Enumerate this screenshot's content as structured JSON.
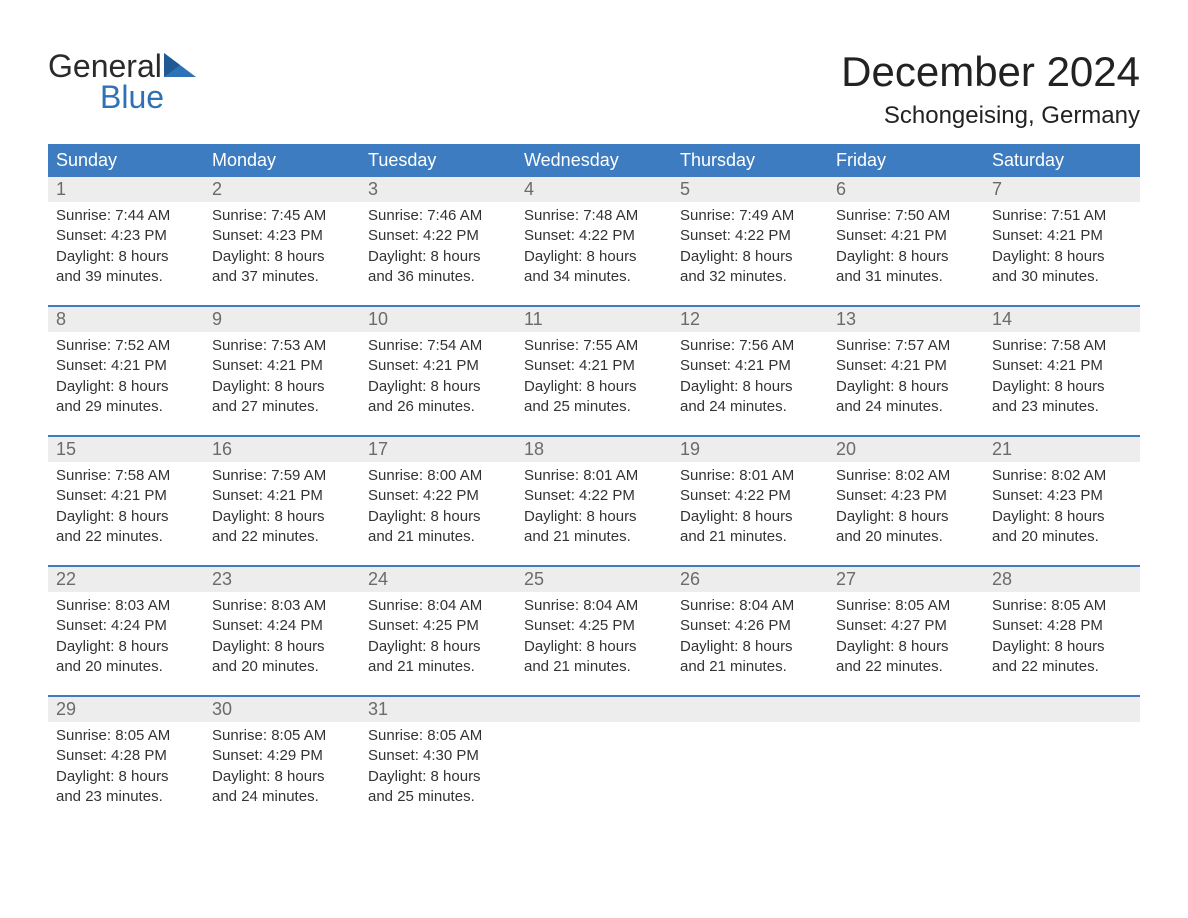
{
  "brand": {
    "general": "General",
    "blue": "Blue"
  },
  "colors": {
    "header_bg": "#3d7cc0",
    "header_text": "#ffffff",
    "daynum_bg": "#ededed",
    "daynum_text": "#6b6b6b",
    "info_text": "#333333",
    "accent": "#2f71b6",
    "page_bg": "#ffffff"
  },
  "title": "December 2024",
  "location": "Schongeising, Germany",
  "day_headers": [
    "Sunday",
    "Monday",
    "Tuesday",
    "Wednesday",
    "Thursday",
    "Friday",
    "Saturday"
  ],
  "weeks": [
    [
      {
        "n": "1",
        "sr": "Sunrise: 7:44 AM",
        "ss": "Sunset: 4:23 PM",
        "d1": "Daylight: 8 hours",
        "d2": "and 39 minutes."
      },
      {
        "n": "2",
        "sr": "Sunrise: 7:45 AM",
        "ss": "Sunset: 4:23 PM",
        "d1": "Daylight: 8 hours",
        "d2": "and 37 minutes."
      },
      {
        "n": "3",
        "sr": "Sunrise: 7:46 AM",
        "ss": "Sunset: 4:22 PM",
        "d1": "Daylight: 8 hours",
        "d2": "and 36 minutes."
      },
      {
        "n": "4",
        "sr": "Sunrise: 7:48 AM",
        "ss": "Sunset: 4:22 PM",
        "d1": "Daylight: 8 hours",
        "d2": "and 34 minutes."
      },
      {
        "n": "5",
        "sr": "Sunrise: 7:49 AM",
        "ss": "Sunset: 4:22 PM",
        "d1": "Daylight: 8 hours",
        "d2": "and 32 minutes."
      },
      {
        "n": "6",
        "sr": "Sunrise: 7:50 AM",
        "ss": "Sunset: 4:21 PM",
        "d1": "Daylight: 8 hours",
        "d2": "and 31 minutes."
      },
      {
        "n": "7",
        "sr": "Sunrise: 7:51 AM",
        "ss": "Sunset: 4:21 PM",
        "d1": "Daylight: 8 hours",
        "d2": "and 30 minutes."
      }
    ],
    [
      {
        "n": "8",
        "sr": "Sunrise: 7:52 AM",
        "ss": "Sunset: 4:21 PM",
        "d1": "Daylight: 8 hours",
        "d2": "and 29 minutes."
      },
      {
        "n": "9",
        "sr": "Sunrise: 7:53 AM",
        "ss": "Sunset: 4:21 PM",
        "d1": "Daylight: 8 hours",
        "d2": "and 27 minutes."
      },
      {
        "n": "10",
        "sr": "Sunrise: 7:54 AM",
        "ss": "Sunset: 4:21 PM",
        "d1": "Daylight: 8 hours",
        "d2": "and 26 minutes."
      },
      {
        "n": "11",
        "sr": "Sunrise: 7:55 AM",
        "ss": "Sunset: 4:21 PM",
        "d1": "Daylight: 8 hours",
        "d2": "and 25 minutes."
      },
      {
        "n": "12",
        "sr": "Sunrise: 7:56 AM",
        "ss": "Sunset: 4:21 PM",
        "d1": "Daylight: 8 hours",
        "d2": "and 24 minutes."
      },
      {
        "n": "13",
        "sr": "Sunrise: 7:57 AM",
        "ss": "Sunset: 4:21 PM",
        "d1": "Daylight: 8 hours",
        "d2": "and 24 minutes."
      },
      {
        "n": "14",
        "sr": "Sunrise: 7:58 AM",
        "ss": "Sunset: 4:21 PM",
        "d1": "Daylight: 8 hours",
        "d2": "and 23 minutes."
      }
    ],
    [
      {
        "n": "15",
        "sr": "Sunrise: 7:58 AM",
        "ss": "Sunset: 4:21 PM",
        "d1": "Daylight: 8 hours",
        "d2": "and 22 minutes."
      },
      {
        "n": "16",
        "sr": "Sunrise: 7:59 AM",
        "ss": "Sunset: 4:21 PM",
        "d1": "Daylight: 8 hours",
        "d2": "and 22 minutes."
      },
      {
        "n": "17",
        "sr": "Sunrise: 8:00 AM",
        "ss": "Sunset: 4:22 PM",
        "d1": "Daylight: 8 hours",
        "d2": "and 21 minutes."
      },
      {
        "n": "18",
        "sr": "Sunrise: 8:01 AM",
        "ss": "Sunset: 4:22 PM",
        "d1": "Daylight: 8 hours",
        "d2": "and 21 minutes."
      },
      {
        "n": "19",
        "sr": "Sunrise: 8:01 AM",
        "ss": "Sunset: 4:22 PM",
        "d1": "Daylight: 8 hours",
        "d2": "and 21 minutes."
      },
      {
        "n": "20",
        "sr": "Sunrise: 8:02 AM",
        "ss": "Sunset: 4:23 PM",
        "d1": "Daylight: 8 hours",
        "d2": "and 20 minutes."
      },
      {
        "n": "21",
        "sr": "Sunrise: 8:02 AM",
        "ss": "Sunset: 4:23 PM",
        "d1": "Daylight: 8 hours",
        "d2": "and 20 minutes."
      }
    ],
    [
      {
        "n": "22",
        "sr": "Sunrise: 8:03 AM",
        "ss": "Sunset: 4:24 PM",
        "d1": "Daylight: 8 hours",
        "d2": "and 20 minutes."
      },
      {
        "n": "23",
        "sr": "Sunrise: 8:03 AM",
        "ss": "Sunset: 4:24 PM",
        "d1": "Daylight: 8 hours",
        "d2": "and 20 minutes."
      },
      {
        "n": "24",
        "sr": "Sunrise: 8:04 AM",
        "ss": "Sunset: 4:25 PM",
        "d1": "Daylight: 8 hours",
        "d2": "and 21 minutes."
      },
      {
        "n": "25",
        "sr": "Sunrise: 8:04 AM",
        "ss": "Sunset: 4:25 PM",
        "d1": "Daylight: 8 hours",
        "d2": "and 21 minutes."
      },
      {
        "n": "26",
        "sr": "Sunrise: 8:04 AM",
        "ss": "Sunset: 4:26 PM",
        "d1": "Daylight: 8 hours",
        "d2": "and 21 minutes."
      },
      {
        "n": "27",
        "sr": "Sunrise: 8:05 AM",
        "ss": "Sunset: 4:27 PM",
        "d1": "Daylight: 8 hours",
        "d2": "and 22 minutes."
      },
      {
        "n": "28",
        "sr": "Sunrise: 8:05 AM",
        "ss": "Sunset: 4:28 PM",
        "d1": "Daylight: 8 hours",
        "d2": "and 22 minutes."
      }
    ],
    [
      {
        "n": "29",
        "sr": "Sunrise: 8:05 AM",
        "ss": "Sunset: 4:28 PM",
        "d1": "Daylight: 8 hours",
        "d2": "and 23 minutes."
      },
      {
        "n": "30",
        "sr": "Sunrise: 8:05 AM",
        "ss": "Sunset: 4:29 PM",
        "d1": "Daylight: 8 hours",
        "d2": "and 24 minutes."
      },
      {
        "n": "31",
        "sr": "Sunrise: 8:05 AM",
        "ss": "Sunset: 4:30 PM",
        "d1": "Daylight: 8 hours",
        "d2": "and 25 minutes."
      },
      {
        "n": "",
        "sr": "",
        "ss": "",
        "d1": "",
        "d2": ""
      },
      {
        "n": "",
        "sr": "",
        "ss": "",
        "d1": "",
        "d2": ""
      },
      {
        "n": "",
        "sr": "",
        "ss": "",
        "d1": "",
        "d2": ""
      },
      {
        "n": "",
        "sr": "",
        "ss": "",
        "d1": "",
        "d2": ""
      }
    ]
  ]
}
